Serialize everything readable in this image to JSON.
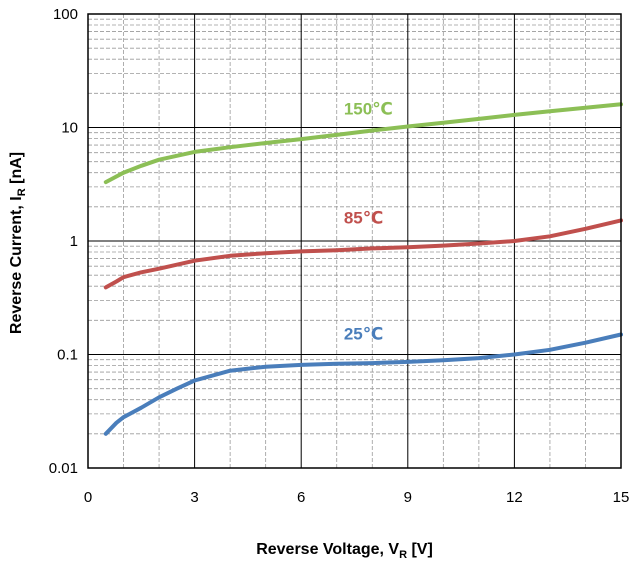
{
  "chart_data": {
    "type": "line",
    "xlabel_main": "Reverse Voltage, V",
    "xlabel_sub": "R",
    "xlabel_unit": " [V]",
    "ylabel_main": "Reverse Current, I",
    "ylabel_sub": "R",
    "ylabel_unit": " [nA]",
    "xlim": [
      0,
      15
    ],
    "ylim": [
      0.01,
      100
    ],
    "yscale": "log",
    "grid": true,
    "x_ticks": [
      0,
      3,
      6,
      9,
      12,
      15
    ],
    "x_tick_labels": [
      "0",
      "3",
      "6",
      "9",
      "12",
      "15"
    ],
    "y_ticks": [
      0.01,
      0.1,
      1,
      10,
      100
    ],
    "y_tick_labels": [
      "0.01",
      "0.1",
      "1",
      "10",
      "100"
    ],
    "series": [
      {
        "name": "150℃",
        "color": "#8cbf56",
        "x": [
          0.5,
          0.8,
          1,
          1.5,
          2,
          3,
          4,
          5,
          6,
          7,
          8,
          9,
          10,
          11,
          12,
          13,
          14,
          15
        ],
        "y": [
          3.3,
          3.7,
          4.0,
          4.6,
          5.2,
          6.1,
          6.7,
          7.3,
          7.9,
          8.6,
          9.4,
          10.2,
          11.0,
          11.9,
          12.9,
          13.9,
          14.9,
          16.0
        ]
      },
      {
        "name": "85℃",
        "color": "#c0504d",
        "x": [
          0.5,
          0.8,
          1,
          1.5,
          2,
          3,
          4,
          5,
          6,
          7,
          8,
          9,
          10,
          11,
          12,
          13,
          14,
          15
        ],
        "y": [
          0.39,
          0.44,
          0.48,
          0.53,
          0.57,
          0.67,
          0.74,
          0.78,
          0.81,
          0.83,
          0.86,
          0.88,
          0.91,
          0.95,
          1.0,
          1.1,
          1.28,
          1.52
        ]
      },
      {
        "name": "25℃",
        "color": "#4a7ebb",
        "x": [
          0.5,
          0.8,
          1,
          1.5,
          2,
          2.5,
          3,
          4,
          5,
          6,
          7,
          8,
          9,
          10,
          11,
          12,
          13,
          14,
          15
        ],
        "y": [
          0.02,
          0.025,
          0.028,
          0.034,
          0.042,
          0.05,
          0.059,
          0.072,
          0.078,
          0.081,
          0.083,
          0.084,
          0.086,
          0.089,
          0.093,
          0.1,
          0.11,
          0.127,
          0.15
        ]
      }
    ]
  }
}
